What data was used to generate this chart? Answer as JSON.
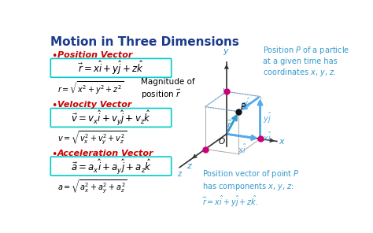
{
  "title": "Motion in Three Dimensions",
  "title_color": "#1a3a8a",
  "bg_color": "#ffffff",
  "box_color": "#00cccc",
  "bullet_color": "#cc0000",
  "label_color": "#cc0000",
  "blue_color": "#3399cc",
  "cyan_color": "#3399cc",
  "magenta_color": "#cc0077",
  "gray_color": "#aaaaaa",
  "dark_color": "#222222",
  "left_sections": [
    {
      "bullet": "Position Vector",
      "box_eq": "$\\vec{r} = x\\hat{i} + y\\hat{j} + z\\hat{k}$",
      "sub_eq": "$r = \\sqrt{x^2 + y^2 + z^2}$",
      "has_note": true,
      "note": "Magnitude of\nposition $\\vec{r}$"
    },
    {
      "bullet": "Velocity Vector",
      "box_eq": "$\\vec{v} = v_x\\hat{i} + v_y\\hat{j} + v_z\\hat{k}$",
      "sub_eq": "$v = \\sqrt{v_x^2 + v_y^2 + v_z^2}$",
      "has_note": false,
      "note": ""
    },
    {
      "bullet": "Acceleration Vector",
      "box_eq": "$\\vec{a} = a_x\\hat{i} + a_y\\hat{j} + a_z\\hat{k}$",
      "sub_eq": "$a = \\sqrt{a_x^2 + a_y^2 + a_z^2}$",
      "has_note": false,
      "note": ""
    }
  ],
  "right_top_text": "Position $P$ of a particle\nat a given time has\ncoordinates $x$, $y$, $z$.",
  "right_bot_text": "Position vector of point $P$\nhas components $x$, $y$, $z$:\n$\\vec{r} = x\\hat{i} + y\\hat{j} + z\\hat{k}.$"
}
